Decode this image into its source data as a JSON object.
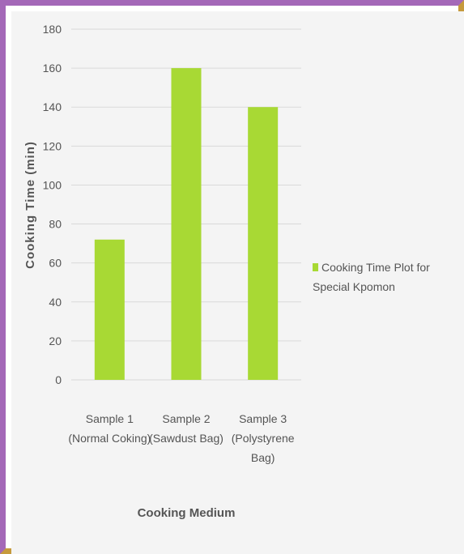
{
  "chart_data": {
    "type": "bar",
    "title": "",
    "xlabel": "Cooking Medium",
    "ylabel": "Cooking Time (min)",
    "categories": [
      [
        "Sample 1",
        "(Normal Coking)"
      ],
      [
        "Sample 2",
        "(Sawdust Bag)"
      ],
      [
        "Sample 3",
        "(Polystyrene",
        "Bag)"
      ]
    ],
    "series": [
      {
        "name": "Cooking Time Plot for Special Kpomon",
        "values": [
          72,
          160,
          140
        ]
      }
    ],
    "ylim": [
      0,
      180
    ],
    "yticks": [
      0,
      20,
      40,
      60,
      80,
      100,
      120,
      140,
      160,
      180
    ],
    "grid": true,
    "legend_position": "right",
    "colors": {
      "bar": "#a8d934",
      "grid": "#d9d9d9",
      "text": "#555555"
    }
  }
}
